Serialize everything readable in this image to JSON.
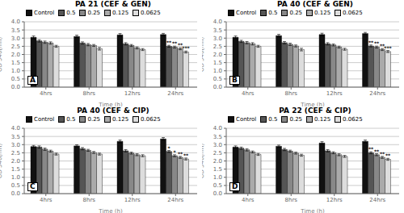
{
  "chart_data": [
    {
      "type": "bar",
      "title": "PA 21 (CEF & GEN)",
      "annotations": [
        "A"
      ],
      "xlabel": "Time (h)",
      "ylabel": "OD 540(nm)",
      "categories": [
        "4hrs",
        "8hrs",
        "12hrs",
        "24hrs"
      ],
      "ylim": [
        0,
        4
      ],
      "yticks": [
        {
          "value": 0,
          "label": "0.0"
        },
        {
          "value": 0.5,
          "label": "0.5"
        },
        {
          "value": 1.0,
          "label": "1.0"
        },
        {
          "value": 1.5,
          "label": "1.5"
        },
        {
          "value": 2.0,
          "label": "2.0"
        },
        {
          "value": 2.5,
          "label": "2.5"
        },
        {
          "value": 3.0,
          "label": "3.0"
        },
        {
          "value": 3.5,
          "label": "3.5"
        },
        {
          "value": 4.0,
          "label": "4.0"
        }
      ],
      "grid": true,
      "legend": "upper left",
      "series": [
        {
          "name": "Control",
          "color": "#111111",
          "values": [
            3.05,
            3.1,
            3.2,
            3.22
          ],
          "errors": [
            0.08,
            0.08,
            0.08,
            0.07
          ],
          "annotations": [
            null,
            null,
            null,
            null
          ]
        },
        {
          "name": "0.5",
          "color": "#555555",
          "values": [
            2.83,
            2.7,
            2.65,
            2.5
          ],
          "errors": [
            0.07,
            0.07,
            0.07,
            0.06
          ],
          "annotations": [
            null,
            null,
            null,
            "**"
          ]
        },
        {
          "name": "0.25",
          "color": "#888888",
          "values": [
            2.75,
            2.6,
            2.55,
            2.45
          ],
          "errors": [
            0.07,
            0.07,
            0.06,
            0.06
          ],
          "annotations": [
            null,
            null,
            null,
            "**"
          ]
        },
        {
          "name": "0.125",
          "color": "#aaaaaa",
          "values": [
            2.7,
            2.55,
            2.4,
            2.35
          ],
          "errors": [
            0.07,
            0.06,
            0.06,
            0.06
          ],
          "annotations": [
            null,
            null,
            null,
            "**"
          ]
        },
        {
          "name": "0.0625",
          "color": "#dddddd",
          "values": [
            2.5,
            2.35,
            2.3,
            2.15
          ],
          "errors": [
            0.06,
            0.08,
            0.06,
            0.06
          ],
          "annotations": [
            null,
            null,
            null,
            "***"
          ]
        }
      ]
    },
    {
      "type": "bar",
      "title": "PA 40 (CEF & GEN)",
      "annotations": [
        "B"
      ],
      "xlabel": "Time (h)",
      "ylabel": "OD 540(nm)",
      "categories": [
        "4hrs",
        "8hrs",
        "12hrs",
        "24hrs"
      ],
      "ylim": [
        0,
        4
      ],
      "yticks": [
        {
          "value": 0,
          "label": "0.0"
        },
        {
          "value": 0.5,
          "label": "0.5"
        },
        {
          "value": 1.0,
          "label": "1.0"
        },
        {
          "value": 1.5,
          "label": "1.5"
        },
        {
          "value": 2.0,
          "label": "2.0"
        },
        {
          "value": 2.5,
          "label": "2.5"
        },
        {
          "value": 3.0,
          "label": "3.0"
        },
        {
          "value": 3.5,
          "label": "3.5"
        },
        {
          "value": 4.0,
          "label": "4.0"
        }
      ],
      "grid": true,
      "legend": "upper left",
      "series": [
        {
          "name": "Control",
          "color": "#111111",
          "values": [
            3.05,
            3.15,
            3.22,
            3.28
          ],
          "errors": [
            0.08,
            0.08,
            0.08,
            0.07
          ],
          "annotations": [
            null,
            null,
            null,
            null
          ]
        },
        {
          "name": "0.5",
          "color": "#555555",
          "values": [
            2.8,
            2.72,
            2.65,
            2.52
          ],
          "errors": [
            0.07,
            0.07,
            0.07,
            0.06
          ],
          "annotations": [
            null,
            null,
            null,
            "**"
          ]
        },
        {
          "name": "0.25",
          "color": "#888888",
          "values": [
            2.72,
            2.62,
            2.58,
            2.45
          ],
          "errors": [
            0.07,
            0.07,
            0.06,
            0.06
          ],
          "annotations": [
            null,
            null,
            null,
            "**"
          ]
        },
        {
          "name": "0.125",
          "color": "#aaaaaa",
          "values": [
            2.65,
            2.52,
            2.45,
            2.3
          ],
          "errors": [
            0.07,
            0.06,
            0.06,
            0.06
          ],
          "annotations": [
            null,
            null,
            null,
            "**"
          ]
        },
        {
          "name": "0.0625",
          "color": "#dddddd",
          "values": [
            2.5,
            2.3,
            2.32,
            2.18
          ],
          "errors": [
            0.06,
            0.08,
            0.06,
            0.06
          ],
          "annotations": [
            null,
            null,
            null,
            "***"
          ]
        }
      ]
    },
    {
      "type": "bar",
      "title": "PA 40 (CEF & CIP)",
      "annotations": [
        "C"
      ],
      "xlabel": "Time (h)",
      "ylabel": "OD 540(nm)",
      "categories": [
        "4hrs",
        "8hrs",
        "12hrs",
        "24hrs"
      ],
      "ylim": [
        0,
        4
      ],
      "yticks": [
        {
          "value": 0,
          "label": "0.0"
        },
        {
          "value": 0.5,
          "label": "0.5"
        },
        {
          "value": 1.0,
          "label": "1.0"
        },
        {
          "value": 1.5,
          "label": "1.5"
        },
        {
          "value": 2.0,
          "label": "2.0"
        },
        {
          "value": 2.5,
          "label": "2.5"
        },
        {
          "value": 3.0,
          "label": "3.0"
        },
        {
          "value": 3.5,
          "label": "3.5"
        },
        {
          "value": 4.0,
          "label": "4.0"
        }
      ],
      "grid": true,
      "legend": "upper left",
      "series": [
        {
          "name": "Control",
          "color": "#111111",
          "values": [
            2.88,
            2.92,
            3.2,
            3.35
          ],
          "errors": [
            0.07,
            0.07,
            0.08,
            0.08
          ],
          "annotations": [
            null,
            null,
            null,
            null
          ]
        },
        {
          "name": "0.5",
          "color": "#555555",
          "values": [
            2.85,
            2.75,
            2.62,
            2.58
          ],
          "errors": [
            0.07,
            0.07,
            0.07,
            0.06
          ],
          "annotations": [
            null,
            null,
            null,
            "*"
          ]
        },
        {
          "name": "0.25",
          "color": "#888888",
          "values": [
            2.72,
            2.65,
            2.48,
            2.32
          ],
          "errors": [
            0.07,
            0.06,
            0.06,
            0.06
          ],
          "annotations": [
            null,
            null,
            null,
            "*"
          ]
        },
        {
          "name": "0.125",
          "color": "#aaaaaa",
          "values": [
            2.6,
            2.52,
            2.38,
            2.22
          ],
          "errors": [
            0.06,
            0.06,
            0.06,
            0.06
          ],
          "annotations": [
            null,
            null,
            null,
            "**"
          ]
        },
        {
          "name": "0.0625",
          "color": "#dddddd",
          "values": [
            2.42,
            2.42,
            2.32,
            2.12
          ],
          "errors": [
            0.06,
            0.06,
            0.06,
            0.06
          ],
          "annotations": [
            null,
            null,
            null,
            "**"
          ]
        }
      ]
    },
    {
      "type": "bar",
      "title": "PA 22 (CEF & CIP)",
      "annotations": [
        "D"
      ],
      "xlabel": "Time (h)",
      "ylabel": "OD 540(nm)",
      "categories": [
        "4hrs",
        "8hrs",
        "12hrs",
        "24hrs"
      ],
      "ylim": [
        0,
        4
      ],
      "yticks": [
        {
          "value": 0,
          "label": "0.0"
        },
        {
          "value": 0.5,
          "label": "0.5"
        },
        {
          "value": 1.0,
          "label": "1.0"
        },
        {
          "value": 1.5,
          "label": "1.5"
        },
        {
          "value": 2.0,
          "label": "2.0"
        },
        {
          "value": 2.5,
          "label": "2.5"
        },
        {
          "value": 3.0,
          "label": "3.0"
        },
        {
          "value": 3.5,
          "label": "3.5"
        },
        {
          "value": 4.0,
          "label": "4.0"
        }
      ],
      "grid": true,
      "legend": "upper left",
      "series": [
        {
          "name": "Control",
          "color": "#111111",
          "values": [
            2.85,
            2.9,
            3.1,
            3.2
          ],
          "errors": [
            0.07,
            0.07,
            0.08,
            0.08
          ],
          "annotations": [
            null,
            null,
            null,
            null
          ]
        },
        {
          "name": "0.5",
          "color": "#555555",
          "values": [
            2.78,
            2.7,
            2.62,
            2.5
          ],
          "errors": [
            0.07,
            0.07,
            0.07,
            0.06
          ],
          "annotations": [
            null,
            null,
            null,
            "**"
          ]
        },
        {
          "name": "0.25",
          "color": "#888888",
          "values": [
            2.68,
            2.6,
            2.5,
            2.38
          ],
          "errors": [
            0.07,
            0.06,
            0.06,
            0.06
          ],
          "annotations": [
            null,
            null,
            null,
            "**"
          ]
        },
        {
          "name": "0.125",
          "color": "#aaaaaa",
          "values": [
            2.55,
            2.48,
            2.38,
            2.22
          ],
          "errors": [
            0.06,
            0.06,
            0.06,
            0.06
          ],
          "annotations": [
            null,
            null,
            null,
            "**"
          ]
        },
        {
          "name": "0.0625",
          "color": "#dddddd",
          "values": [
            2.4,
            2.35,
            2.28,
            2.1
          ],
          "errors": [
            0.06,
            0.06,
            0.06,
            0.06
          ],
          "annotations": [
            null,
            null,
            null,
            "**"
          ]
        }
      ]
    }
  ]
}
